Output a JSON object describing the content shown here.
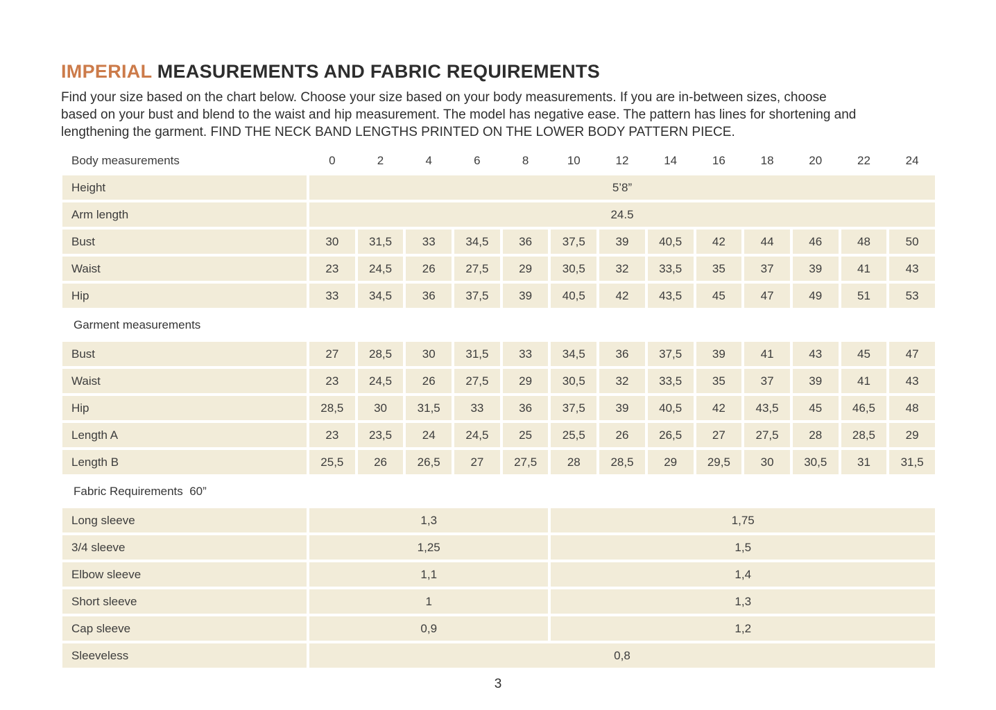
{
  "page": {
    "title_highlight": "IMPERIAL",
    "title_rest": " MEASUREMENTS AND FABRIC REQUIREMENTS",
    "intro_lines": [
      "Find your size based on the chart below. Choose your size based on your body measurements. If you are in-between sizes, choose",
      "based on your bust and blend to the waist and hip measurement. The model has negative ease. The pattern has lines for shortening and",
      "lengthening the garment. FIND THE NECK BAND LENGTHS PRINTED ON THE LOWER BODY PATTERN PIECE."
    ],
    "page_number": "3"
  },
  "colors": {
    "accent": "#cc7b4a",
    "cell_background": "#f2ecd9",
    "text": "#3c3c3c"
  },
  "table": {
    "header_label": "Body measurements",
    "sizes": [
      "0",
      "2",
      "4",
      "6",
      "8",
      "10",
      "12",
      "14",
      "16",
      "18",
      "20",
      "22",
      "24"
    ],
    "body_rows_full": [
      {
        "label": "Height",
        "value": "5’8”"
      },
      {
        "label": "Arm length",
        "value": "24.5"
      }
    ],
    "body_rows": [
      {
        "label": "Bust",
        "values": [
          "30",
          "31,5",
          "33",
          "34,5",
          "36",
          "37,5",
          "39",
          "40,5",
          "42",
          "44",
          "46",
          "48",
          "50"
        ]
      },
      {
        "label": "Waist",
        "values": [
          "23",
          "24,5",
          "26",
          "27,5",
          "29",
          "30,5",
          "32",
          "33,5",
          "35",
          "37",
          "39",
          "41",
          "43"
        ]
      },
      {
        "label": "Hip",
        "values": [
          "33",
          "34,5",
          "36",
          "37,5",
          "39",
          "40,5",
          "42",
          "43,5",
          "45",
          "47",
          "49",
          "51",
          "53"
        ]
      }
    ],
    "garment_label": "Garment measurements",
    "garment_rows": [
      {
        "label": "Bust",
        "values": [
          "27",
          "28,5",
          "30",
          "31,5",
          "33",
          "34,5",
          "36",
          "37,5",
          "39",
          "41",
          "43",
          "45",
          "47"
        ]
      },
      {
        "label": "Waist",
        "values": [
          "23",
          "24,5",
          "26",
          "27,5",
          "29",
          "30,5",
          "32",
          "33,5",
          "35",
          "37",
          "39",
          "41",
          "43"
        ]
      },
      {
        "label": "Hip",
        "values": [
          "28,5",
          "30",
          "31,5",
          "33",
          "36",
          "37,5",
          "39",
          "40,5",
          "42",
          "43,5",
          "45",
          "46,5",
          "48"
        ]
      },
      {
        "label": "Length A",
        "values": [
          "23",
          "23,5",
          "24",
          "24,5",
          "25",
          "25,5",
          "26",
          "26,5",
          "27",
          "27,5",
          "28",
          "28,5",
          "29"
        ]
      },
      {
        "label": "Length B",
        "values": [
          "25,5",
          "26",
          "26,5",
          "27",
          "27,5",
          "28",
          "28,5",
          "29",
          "29,5",
          "30",
          "30,5",
          "31",
          "31,5"
        ]
      }
    ],
    "fabric_label": "Fabric Requirements  60”",
    "fabric_rows": [
      {
        "label": "Long sleeve",
        "left": "1,3",
        "right": "1,75"
      },
      {
        "label": "3/4 sleeve",
        "left": "1,25",
        "right": "1,5"
      },
      {
        "label": "Elbow sleeve",
        "left": "1,1",
        "right": "1,4"
      },
      {
        "label": "Short sleeve",
        "left": "1",
        "right": "1,3"
      },
      {
        "label": "Cap sleeve",
        "left": "0,9",
        "right": "1,2"
      }
    ],
    "sleeveless_row": {
      "label": "Sleeveless",
      "value": "0,8"
    }
  }
}
